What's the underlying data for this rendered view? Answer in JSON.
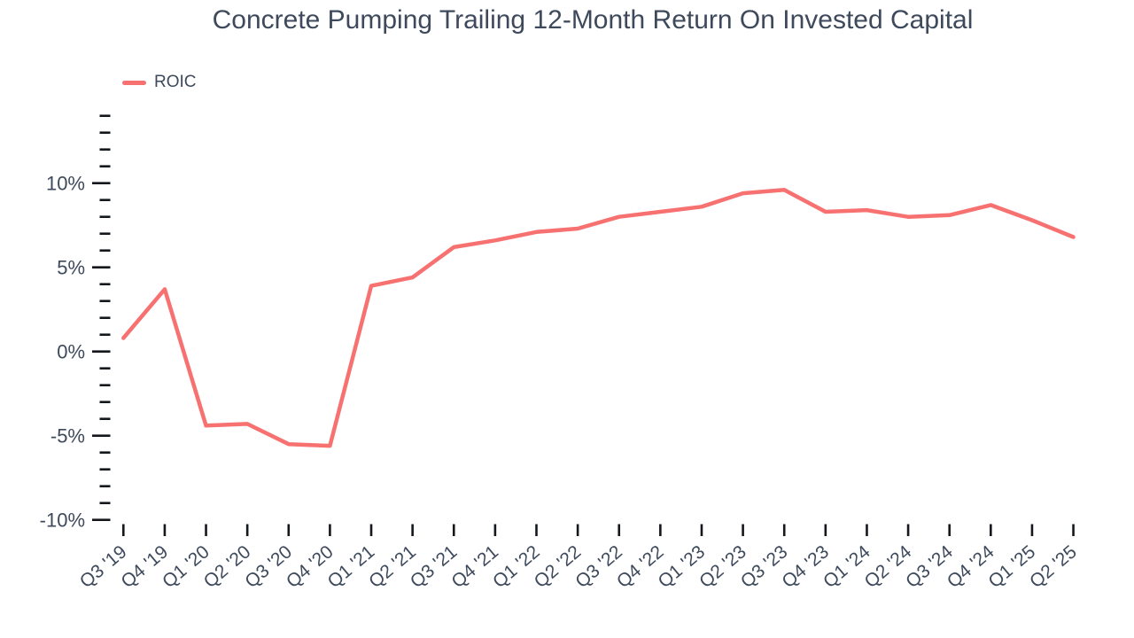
{
  "title": "Concrete Pumping Trailing 12-Month Return On Invested Capital",
  "legend": {
    "label": "ROIC",
    "color": "#f87171"
  },
  "colors": {
    "text": "#3e4a5c",
    "tick": "#14171c",
    "accent": "#f87171",
    "background": "#ffffff"
  },
  "chart_data": {
    "type": "line",
    "title": "Concrete Pumping Trailing 12-Month Return On Invested Capital",
    "categories": [
      "Q3 '19",
      "Q4 '19",
      "Q1 '20",
      "Q2 '20",
      "Q3 '20",
      "Q4 '20",
      "Q1 '21",
      "Q2 '21",
      "Q3 '21",
      "Q4 '21",
      "Q1 '22",
      "Q2 '22",
      "Q3 '22",
      "Q4 '22",
      "Q1 '23",
      "Q2 '23",
      "Q3 '23",
      "Q4 '23",
      "Q1 '24",
      "Q2 '24",
      "Q3 '24",
      "Q4 '24",
      "Q1 '25",
      "Q2 '25"
    ],
    "series": [
      {
        "name": "ROIC",
        "color": "#f87171",
        "values": [
          0.8,
          3.7,
          -4.4,
          -4.3,
          -5.5,
          -5.6,
          3.9,
          4.4,
          6.2,
          6.6,
          7.1,
          7.3,
          8.0,
          8.3,
          8.6,
          9.4,
          9.6,
          8.3,
          8.4,
          8.0,
          8.1,
          8.7,
          7.8,
          6.8
        ]
      }
    ],
    "xlabel": "",
    "ylabel": "",
    "ylim": [
      -10,
      14
    ],
    "y_major_ticks": [
      -10,
      -5,
      0,
      5,
      10
    ],
    "y_minor_step": 1,
    "y_tick_suffix": "%",
    "grid": false,
    "legend_position": "top-left",
    "x_labels_rotated_degrees": 40
  }
}
